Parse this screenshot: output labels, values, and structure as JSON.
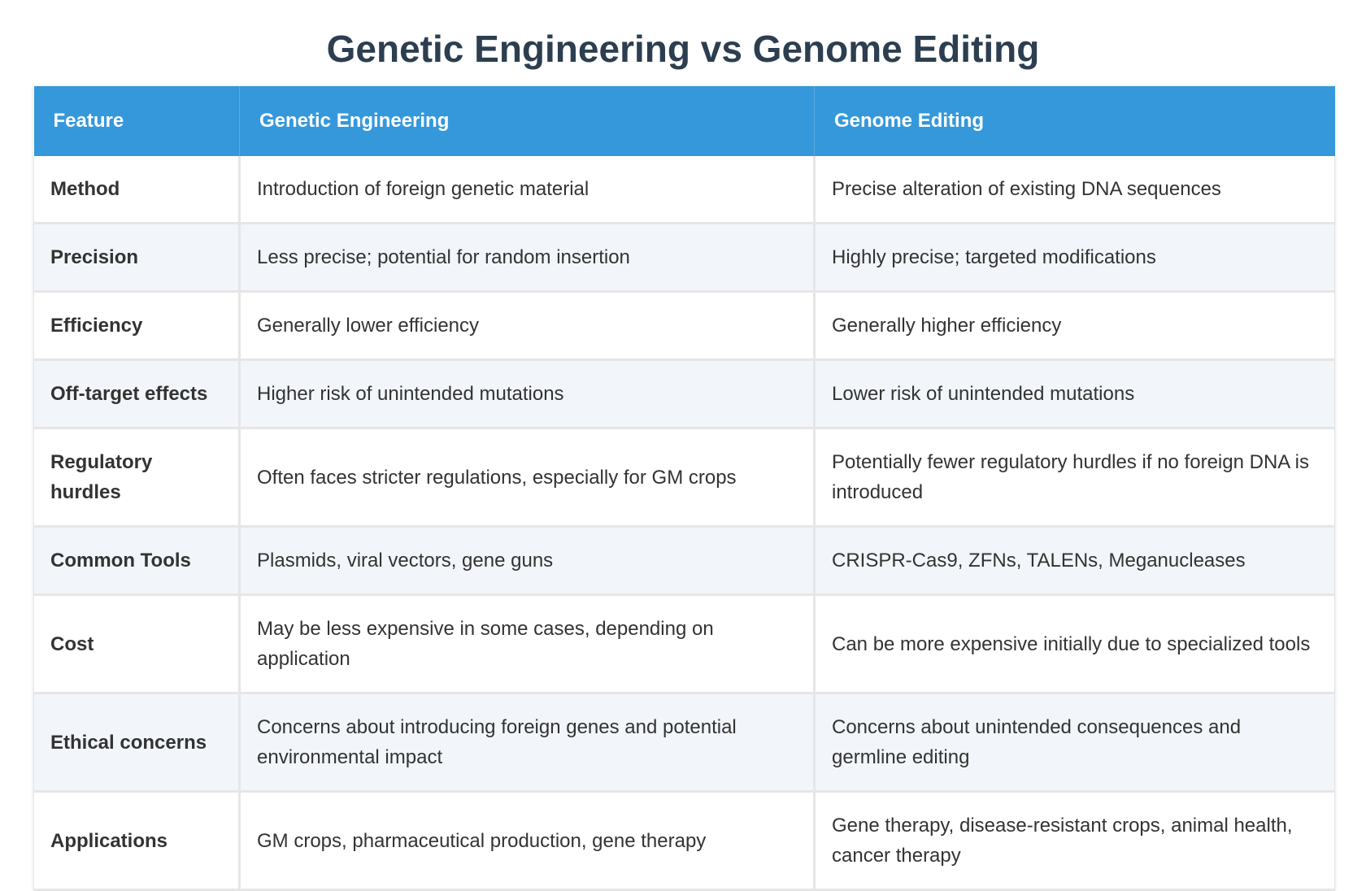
{
  "title": "Genetic Engineering vs Genome Editing",
  "table": {
    "headers": [
      "Feature",
      "Genetic Engineering",
      "Genome Editing"
    ],
    "rows": [
      [
        "Method",
        "Introduction of foreign genetic material",
        "Precise alteration of existing DNA sequences"
      ],
      [
        "Precision",
        "Less precise; potential for random insertion",
        "Highly precise; targeted modifications"
      ],
      [
        "Efficiency",
        "Generally lower efficiency",
        "Generally higher efficiency"
      ],
      [
        "Off-target effects",
        "Higher risk of unintended mutations",
        "Lower risk of unintended mutations"
      ],
      [
        "Regulatory hurdles",
        "Often faces stricter regulations, especially for GM crops",
        "Potentially fewer regulatory hurdles if no foreign DNA is introduced"
      ],
      [
        "Common Tools",
        "Plasmids, viral vectors, gene guns",
        "CRISPR-Cas9, ZFNs, TALENs, Meganucleases"
      ],
      [
        "Cost",
        "May be less expensive in some cases, depending on application",
        "Can be more expensive initially due to specialized tools"
      ],
      [
        "Ethical concerns",
        "Concerns about introducing foreign genes and potential environmental impact",
        "Concerns about unintended consequences and germline editing"
      ],
      [
        "Applications",
        "GM crops, pharmaceutical production, gene therapy",
        "Gene therapy, disease-resistant crops, animal health, cancer therapy"
      ]
    ]
  },
  "colors": {
    "title": "#2c3e50",
    "header_bg": "#3498db",
    "header_text": "#ffffff",
    "row_alt_bg": "#f2f6fa",
    "border": "#e6e6e6"
  }
}
